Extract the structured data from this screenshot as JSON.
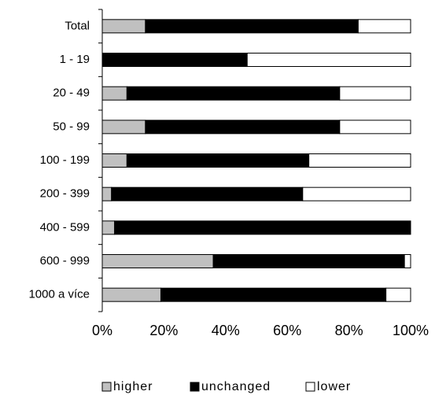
{
  "chart_data": {
    "type": "stacked-barh",
    "categories": [
      "Total",
      "1 - 19",
      "20 - 49",
      "50 - 99",
      "100 - 199",
      "200 - 399",
      "400 - 599",
      "600 - 999",
      "1000 a více"
    ],
    "series": [
      {
        "name": "higher",
        "color": "#c0c0c0",
        "values": [
          14,
          0,
          8,
          14,
          8,
          3,
          4,
          36,
          19
        ]
      },
      {
        "name": "unchanged",
        "color": "#000000",
        "values": [
          69,
          47,
          69,
          63,
          59,
          62,
          96,
          62,
          73
        ]
      },
      {
        "name": "lower",
        "color": "#ffffff",
        "values": [
          17,
          53,
          23,
          23,
          33,
          35,
          0,
          2,
          8
        ]
      }
    ],
    "xlim": [
      0,
      100
    ],
    "xticks": [
      {
        "value": 0,
        "label": "0%"
      },
      {
        "value": 20,
        "label": "20%"
      },
      {
        "value": 40,
        "label": "40%"
      },
      {
        "value": 60,
        "label": "60%"
      },
      {
        "value": 80,
        "label": "80%"
      },
      {
        "value": 100,
        "label": "100%"
      }
    ],
    "legend": "bottom"
  }
}
